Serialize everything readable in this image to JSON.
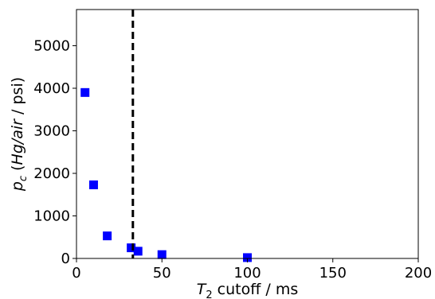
{
  "chart_data": {
    "type": "scatter",
    "xlabel": "T2 cutoff / ms",
    "ylabel": "pc (Hg/air / psi)",
    "xlim": [
      0,
      200
    ],
    "ylim": [
      0,
      5850
    ],
    "xticks": [
      0,
      50,
      100,
      150,
      200
    ],
    "yticks": [
      0,
      1000,
      2000,
      3000,
      4000,
      5000
    ],
    "grid": false,
    "marker": "square",
    "marker_color": "#0000ff",
    "vline": {
      "x": 33,
      "style": "dashed",
      "color": "#000000"
    },
    "series": [
      {
        "x": [
          5,
          10,
          18,
          32,
          36,
          50,
          100
        ],
        "y": [
          3900,
          1730,
          530,
          250,
          170,
          90,
          20
        ]
      }
    ]
  }
}
